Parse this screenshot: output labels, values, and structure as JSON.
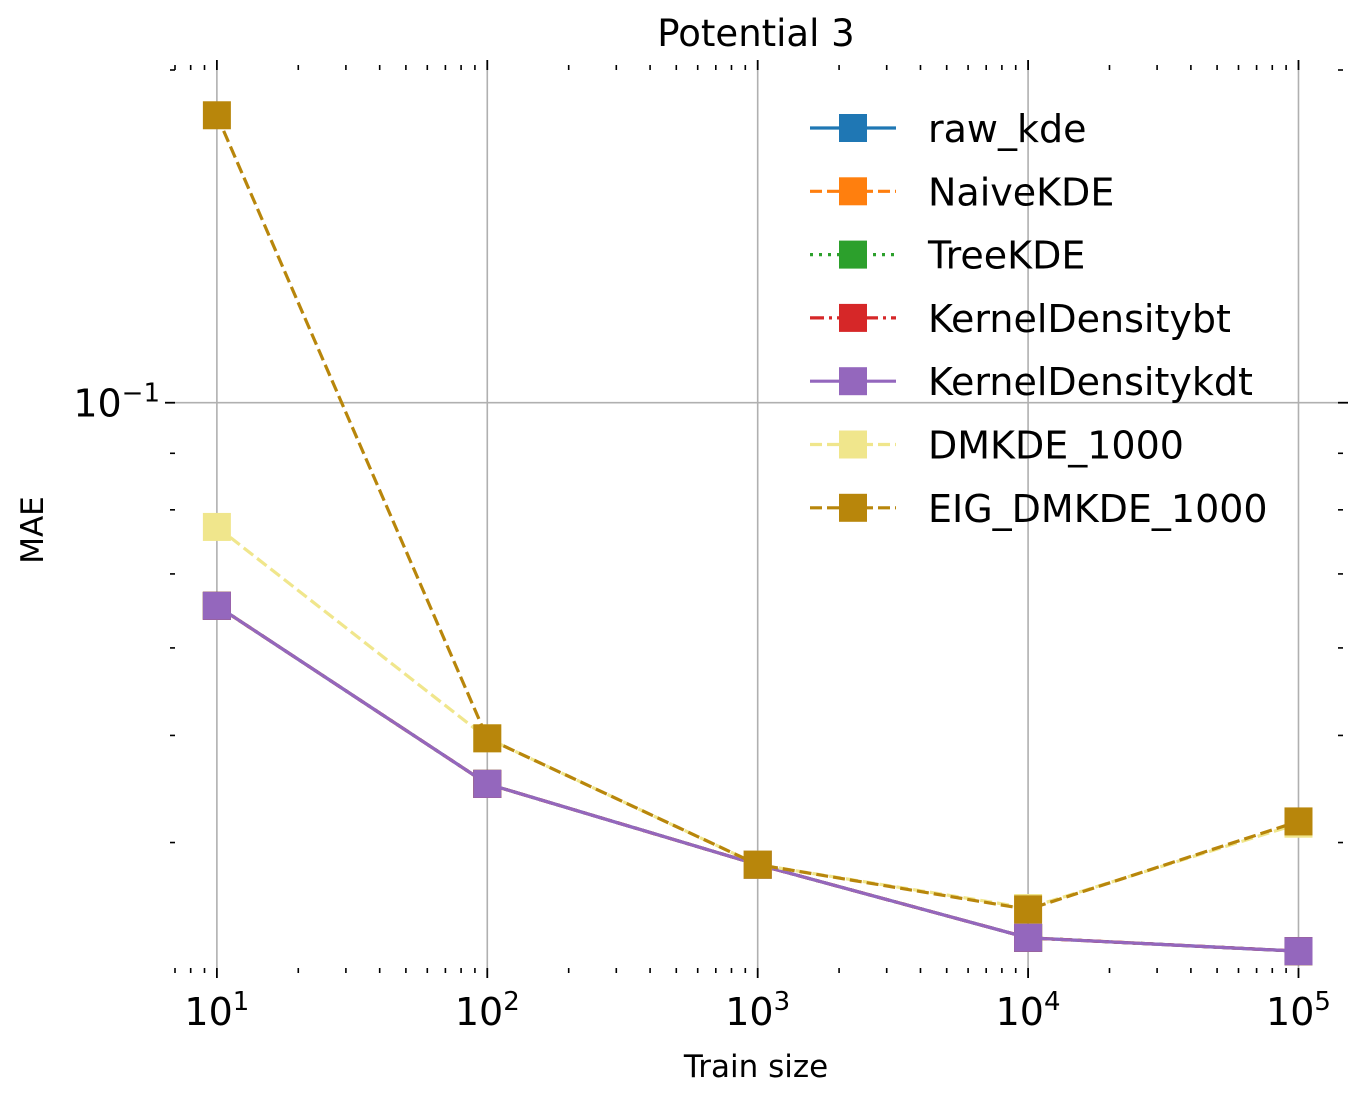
{
  "chart_data": {
    "type": "line",
    "title": "Potential 3",
    "xlabel": "Train size",
    "ylabel": "MAE",
    "xscale": "log",
    "yscale": "log",
    "x": [
      10,
      100,
      1000,
      10000,
      100000
    ],
    "xlim": [
      7,
      140000
    ],
    "ylim": [
      0.0308,
      0.2
    ],
    "x_ticks": [
      {
        "value": 10,
        "base": "10",
        "exp": "1"
      },
      {
        "value": 100,
        "base": "10",
        "exp": "2"
      },
      {
        "value": 1000,
        "base": "10",
        "exp": "3"
      },
      {
        "value": 10000,
        "base": "10",
        "exp": "4"
      },
      {
        "value": 100000,
        "base": "10",
        "exp": "5"
      }
    ],
    "y_ticks": [
      {
        "value": 0.1,
        "base": "10",
        "exp": "−1"
      }
    ],
    "grid": true,
    "legend_position": "top-right",
    "series": [
      {
        "name": "raw_kde",
        "color": "#1f77b4",
        "linestyle": "solid",
        "marker": "square",
        "values": [
          0.0655,
          0.0452,
          0.0382,
          0.0328,
          0.0319
        ]
      },
      {
        "name": "NaiveKDE",
        "color": "#ff7f0e",
        "linestyle": "dashed",
        "marker": "square",
        "values": [
          0.0655,
          0.0452,
          0.0382,
          0.0328,
          0.0319
        ]
      },
      {
        "name": "TreeKDE",
        "color": "#2ca02c",
        "linestyle": "dotted",
        "marker": "square",
        "values": [
          0.0655,
          0.0452,
          0.0382,
          0.0328,
          0.0319
        ]
      },
      {
        "name": "KernelDensitybt",
        "color": "#d62728",
        "linestyle": "dashdot",
        "marker": "square",
        "values": [
          0.0655,
          0.0452,
          0.0382,
          0.0328,
          0.0319
        ]
      },
      {
        "name": "KernelDensitykdt",
        "color": "#9467bd",
        "linestyle": "solid",
        "marker": "square",
        "values": [
          0.0655,
          0.0452,
          0.0382,
          0.0328,
          0.0319
        ]
      },
      {
        "name": "DMKDE_1000",
        "color": "#f0e68c",
        "linestyle": "dashed",
        "marker": "square",
        "values": [
          0.0772,
          0.0497,
          0.0382,
          0.0349,
          0.0416
        ]
      },
      {
        "name": "EIG_DMKDE_1000",
        "color": "#b8860b",
        "linestyle": "dashed",
        "marker": "square",
        "values": [
          0.182,
          0.0497,
          0.0382,
          0.0348,
          0.0418
        ]
      }
    ]
  }
}
